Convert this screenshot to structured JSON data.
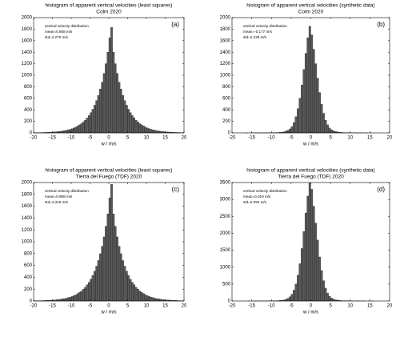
{
  "chart_data": [
    {
      "type": "histogram",
      "title": "histogram of apparent vertical velocities (least squares)",
      "subtitle": "Colm 2020",
      "panel_label": "(a)",
      "xlabel": "w / m/s",
      "annotations": [
        "vertical velocity distribution",
        "mean=0.858 m/s",
        "std=4.270 m/s"
      ],
      "color": "#5a5a5a",
      "bins": [
        -20,
        -19.5,
        -19,
        -18.5,
        -18,
        -17.5,
        -17,
        -16.5,
        -16,
        -15.5,
        -15,
        -14.5,
        -14,
        -13.5,
        -13,
        -12.5,
        -12,
        -11.5,
        -11,
        -10.5,
        -10,
        -9.5,
        -9,
        -8.5,
        -8,
        -7.5,
        -7,
        -6.5,
        -6,
        -5.5,
        -5,
        -4.5,
        -4,
        -3.5,
        -3,
        -2.5,
        -2,
        -1.5,
        -1,
        -0.5,
        0,
        0.5,
        1,
        1.5,
        2,
        2.5,
        3,
        3.5,
        4,
        4.5,
        5,
        5.5,
        6,
        6.5,
        7,
        7.5,
        8,
        8.5,
        9,
        9.5,
        10,
        10.5,
        11,
        11.5,
        12,
        12.5,
        13,
        13.5,
        14,
        14.5,
        15,
        15.5,
        16,
        16.5,
        17,
        17.5,
        18,
        18.5,
        19,
        19.5,
        20
      ],
      "values": [
        3,
        4,
        4,
        5,
        6,
        7,
        8,
        9,
        11,
        13,
        15,
        17,
        20,
        24,
        28,
        33,
        38,
        45,
        53,
        62,
        72,
        85,
        100,
        120,
        140,
        160,
        190,
        220,
        260,
        300,
        350,
        410,
        480,
        560,
        650,
        760,
        880,
        1030,
        1200,
        1400,
        1650,
        1830,
        1400,
        1200,
        1030,
        880,
        760,
        650,
        560,
        480,
        410,
        350,
        300,
        260,
        220,
        190,
        160,
        140,
        120,
        100,
        85,
        72,
        62,
        53,
        45,
        38,
        33,
        28,
        24,
        20,
        17,
        15,
        13,
        11,
        9,
        8,
        7,
        6,
        5,
        4
      ],
      "xlim": [
        -20,
        20
      ],
      "xticks": [
        -20,
        -15,
        -10,
        -5,
        0,
        5,
        10,
        15,
        20
      ],
      "ylim": [
        0,
        2000
      ],
      "yticks": [
        0,
        200,
        400,
        600,
        800,
        1000,
        1200,
        1400,
        1600,
        1800,
        2000
      ]
    },
    {
      "type": "histogram",
      "title": "histogram of apparent vertical velocities (synthetic data)",
      "subtitle": "Colm 2020",
      "panel_label": "(b)",
      "xlabel": "w / m/s",
      "annotations": [
        "vertical velocity distribution",
        "mean=-0.177 m/s",
        "std=2.236 m/s"
      ],
      "color": "#5a5a5a",
      "bins": [
        -20,
        -19.5,
        -19,
        -18.5,
        -18,
        -17.5,
        -17,
        -16.5,
        -16,
        -15.5,
        -15,
        -14.5,
        -14,
        -13.5,
        -13,
        -12.5,
        -12,
        -11.5,
        -11,
        -10.5,
        -10,
        -9.5,
        -9,
        -8.5,
        -8,
        -7.5,
        -7,
        -6.5,
        -6,
        -5.5,
        -5,
        -4.5,
        -4,
        -3.5,
        -3,
        -2.5,
        -2,
        -1.5,
        -1,
        -0.5,
        0,
        0.5,
        1,
        1.5,
        2,
        2.5,
        3,
        3.5,
        4,
        4.5,
        5,
        5.5,
        6,
        6.5,
        7,
        7.5,
        8,
        8.5,
        9,
        9.5,
        10,
        10.5,
        11,
        11.5,
        12,
        12.5,
        13,
        13.5,
        14,
        14.5,
        15,
        15.5,
        16,
        16.5,
        17,
        17.5,
        18,
        18.5,
        19,
        19.5,
        20
      ],
      "values": [
        0,
        0,
        0,
        0,
        0,
        0,
        0,
        1,
        0,
        1,
        1,
        1,
        1,
        1,
        1,
        2,
        2,
        2,
        2,
        3,
        3,
        4,
        5,
        7,
        9,
        13,
        20,
        30,
        45,
        70,
        110,
        180,
        280,
        420,
        600,
        830,
        1100,
        1380,
        1650,
        1850,
        1700,
        1450,
        1200,
        950,
        700,
        500,
        340,
        220,
        140,
        85,
        55,
        35,
        24,
        16,
        11,
        8,
        6,
        4,
        3,
        3,
        2,
        2,
        2,
        1,
        1,
        1,
        1,
        1,
        1,
        0,
        1,
        0,
        0,
        0,
        0,
        0,
        0,
        0,
        0,
        0
      ],
      "xlim": [
        -20,
        20
      ],
      "xticks": [
        -20,
        -15,
        -10,
        -5,
        0,
        5,
        10,
        15,
        20
      ],
      "ylim": [
        0,
        2000
      ],
      "yticks": [
        0,
        200,
        400,
        600,
        800,
        1000,
        1200,
        1400,
        1600,
        1800,
        2000
      ]
    },
    {
      "type": "histogram",
      "title": "histogram of apparent vertical velocities (least squares)",
      "subtitle": "Tierra del Fuego (TDF) 2020",
      "panel_label": "(c)",
      "xlabel": "w / m/s",
      "annotations": [
        "vertical velocity distribution",
        "mean=0.958 m/s",
        "std=4.315 m/s"
      ],
      "color": "#5a5a5a",
      "bins": [
        -20,
        -19.5,
        -19,
        -18.5,
        -18,
        -17.5,
        -17,
        -16.5,
        -16,
        -15.5,
        -15,
        -14.5,
        -14,
        -13.5,
        -13,
        -12.5,
        -12,
        -11.5,
        -11,
        -10.5,
        -10,
        -9.5,
        -9,
        -8.5,
        -8,
        -7.5,
        -7,
        -6.5,
        -6,
        -5.5,
        -5,
        -4.5,
        -4,
        -3.5,
        -3,
        -2.5,
        -2,
        -1.5,
        -1,
        -0.5,
        0,
        0.5,
        1,
        1.5,
        2,
        2.5,
        3,
        3.5,
        4,
        4.5,
        5,
        5.5,
        6,
        6.5,
        7,
        7.5,
        8,
        8.5,
        9,
        9.5,
        10,
        10.5,
        11,
        11.5,
        12,
        12.5,
        13,
        13.5,
        14,
        14.5,
        15,
        15.5,
        16,
        16.5,
        17,
        17.5,
        18,
        18.5,
        19,
        19.5,
        20
      ],
      "values": [
        3,
        4,
        5,
        5,
        6,
        7,
        9,
        10,
        12,
        14,
        16,
        18,
        21,
        25,
        29,
        35,
        40,
        47,
        56,
        65,
        76,
        89,
        105,
        126,
        147,
        168,
        200,
        231,
        273,
        315,
        368,
        430,
        504,
        588,
        683,
        798,
        924,
        1082,
        1260,
        1470,
        1740,
        1970,
        1470,
        1260,
        1082,
        924,
        798,
        683,
        588,
        504,
        430,
        368,
        315,
        273,
        231,
        200,
        168,
        147,
        126,
        105,
        89,
        76,
        65,
        56,
        47,
        40,
        35,
        29,
        25,
        21,
        18,
        16,
        14,
        12,
        10,
        9,
        7,
        6,
        5,
        5
      ],
      "xlim": [
        -20,
        20
      ],
      "xticks": [
        -20,
        -15,
        -10,
        -5,
        0,
        5,
        10,
        15,
        20
      ],
      "ylim": [
        0,
        2000
      ],
      "yticks": [
        0,
        200,
        400,
        600,
        800,
        1000,
        1200,
        1400,
        1600,
        1800,
        2000
      ]
    },
    {
      "type": "histogram",
      "title": "histogram of apparent vertical velocities (synthetic data)",
      "subtitle": "Tierra del Fuego (TDF) 2020",
      "panel_label": "(d)",
      "xlabel": "w / m/s",
      "annotations": [
        "vertical velocity distribution",
        "mean=0.019 m/s",
        "std=2.094 m/s"
      ],
      "color": "#5a5a5a",
      "bins": [
        -20,
        -19.5,
        -19,
        -18.5,
        -18,
        -17.5,
        -17,
        -16.5,
        -16,
        -15.5,
        -15,
        -14.5,
        -14,
        -13.5,
        -13,
        -12.5,
        -12,
        -11.5,
        -11,
        -10.5,
        -10,
        -9.5,
        -9,
        -8.5,
        -8,
        -7.5,
        -7,
        -6.5,
        -6,
        -5.5,
        -5,
        -4.5,
        -4,
        -3.5,
        -3,
        -2.5,
        -2,
        -1.5,
        -1,
        -0.5,
        0,
        0.5,
        1,
        1.5,
        2,
        2.5,
        3,
        3.5,
        4,
        4.5,
        5,
        5.5,
        6,
        6.5,
        7,
        7.5,
        8,
        8.5,
        9,
        9.5,
        10,
        10.5,
        11,
        11.5,
        12,
        12.5,
        13,
        13.5,
        14,
        14.5,
        15,
        15.5,
        16,
        16.5,
        17,
        17.5,
        18,
        18.5,
        19,
        19.5,
        20
      ],
      "values": [
        0,
        0,
        0,
        0,
        0,
        0,
        0,
        0,
        1,
        0,
        1,
        1,
        1,
        1,
        2,
        2,
        2,
        3,
        3,
        4,
        5,
        6,
        8,
        11,
        15,
        22,
        32,
        50,
        80,
        125,
        200,
        320,
        500,
        760,
        1100,
        1550,
        2050,
        2600,
        3100,
        3480,
        3300,
        2800,
        2300,
        1800,
        1300,
        900,
        600,
        380,
        230,
        140,
        85,
        55,
        35,
        24,
        16,
        11,
        8,
        6,
        5,
        4,
        2,
        2,
        2,
        2,
        1,
        1,
        1,
        1,
        0,
        1,
        0,
        1,
        0,
        0,
        0,
        0,
        0,
        0,
        0,
        0
      ],
      "xlim": [
        -20,
        20
      ],
      "xticks": [
        -20,
        -15,
        -10,
        -5,
        0,
        5,
        10,
        15,
        20
      ],
      "ylim": [
        0,
        3500
      ],
      "yticks": [
        0,
        500,
        1000,
        1500,
        2000,
        2500,
        3000,
        3500
      ]
    }
  ]
}
